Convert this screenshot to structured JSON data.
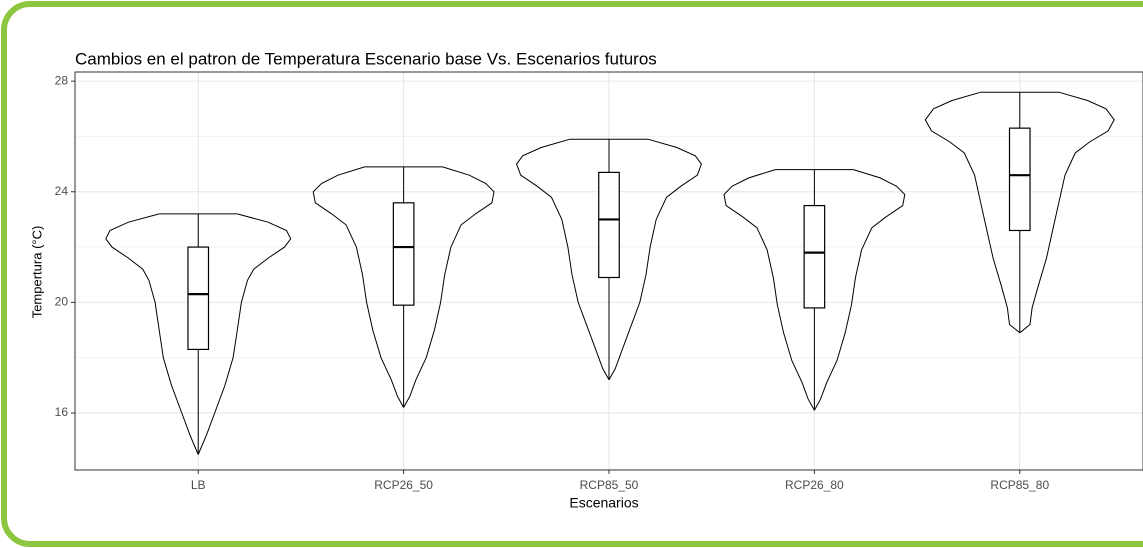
{
  "chart_data": {
    "type": "violin",
    "title": "Cambios en el patron de Temperatura Escenario base Vs. Escenarios futuros",
    "xlabel": "Escenarios",
    "ylabel": "Tempertura (°C)",
    "categories": [
      "LB",
      "RCP26_50",
      "RCP85_50",
      "RCP26_80",
      "RCP85_80"
    ],
    "boxes": [
      {
        "min": 14.5,
        "q1": 18.3,
        "median": 20.3,
        "q3": 22.0,
        "max": 23.2
      },
      {
        "min": 16.2,
        "q1": 19.9,
        "median": 22.0,
        "q3": 23.6,
        "max": 24.9
      },
      {
        "min": 17.2,
        "q1": 20.9,
        "median": 23.0,
        "q3": 24.7,
        "max": 25.9
      },
      {
        "min": 16.1,
        "q1": 19.8,
        "median": 21.8,
        "q3": 23.5,
        "max": 24.8
      },
      {
        "min": 18.9,
        "q1": 22.6,
        "median": 24.6,
        "q3": 26.3,
        "max": 27.6
      }
    ],
    "violins": [
      {
        "y": [
          23.2,
          22.9,
          22.6,
          22.3,
          22.0,
          21.6,
          21.2,
          20.8,
          20.0,
          19.0,
          18.0,
          17.0,
          16.0,
          15.2,
          14.5
        ],
        "width": [
          0.19,
          0.34,
          0.43,
          0.45,
          0.42,
          0.34,
          0.27,
          0.24,
          0.21,
          0.19,
          0.17,
          0.13,
          0.08,
          0.04,
          0
        ]
      },
      {
        "y": [
          24.9,
          24.6,
          24.3,
          24.0,
          23.6,
          23.2,
          22.8,
          22.0,
          21.0,
          20.0,
          19.0,
          18.0,
          17.2,
          16.6,
          16.2
        ],
        "width": [
          0.19,
          0.32,
          0.4,
          0.44,
          0.43,
          0.35,
          0.28,
          0.23,
          0.2,
          0.18,
          0.15,
          0.11,
          0.06,
          0.03,
          0
        ]
      },
      {
        "y": [
          25.9,
          25.6,
          25.3,
          25.0,
          24.6,
          24.2,
          23.8,
          23.0,
          22.0,
          21.0,
          20.0,
          19.0,
          18.2,
          17.6,
          17.2
        ],
        "width": [
          0.19,
          0.33,
          0.42,
          0.45,
          0.43,
          0.35,
          0.28,
          0.23,
          0.2,
          0.18,
          0.15,
          0.1,
          0.06,
          0.03,
          0
        ]
      },
      {
        "y": [
          24.8,
          24.5,
          24.2,
          23.9,
          23.5,
          23.1,
          22.7,
          21.9,
          20.9,
          19.9,
          18.9,
          17.9,
          17.1,
          16.5,
          16.1
        ],
        "width": [
          0.19,
          0.32,
          0.4,
          0.44,
          0.43,
          0.35,
          0.28,
          0.23,
          0.2,
          0.18,
          0.15,
          0.11,
          0.06,
          0.03,
          0
        ]
      },
      {
        "y": [
          27.6,
          27.3,
          27.0,
          26.6,
          26.2,
          25.8,
          25.4,
          24.6,
          23.6,
          22.6,
          21.6,
          20.6,
          19.8,
          19.2,
          18.9
        ],
        "width": [
          0.19,
          0.33,
          0.42,
          0.46,
          0.43,
          0.34,
          0.27,
          0.22,
          0.19,
          0.16,
          0.13,
          0.09,
          0.06,
          0.05,
          0
        ]
      }
    ],
    "ylim": [
      13.94,
      28.33
    ],
    "yticks": [
      16,
      20,
      24,
      28
    ],
    "yticks_minor": [
      18,
      22,
      26
    ],
    "grid": true,
    "color": "#000000"
  }
}
